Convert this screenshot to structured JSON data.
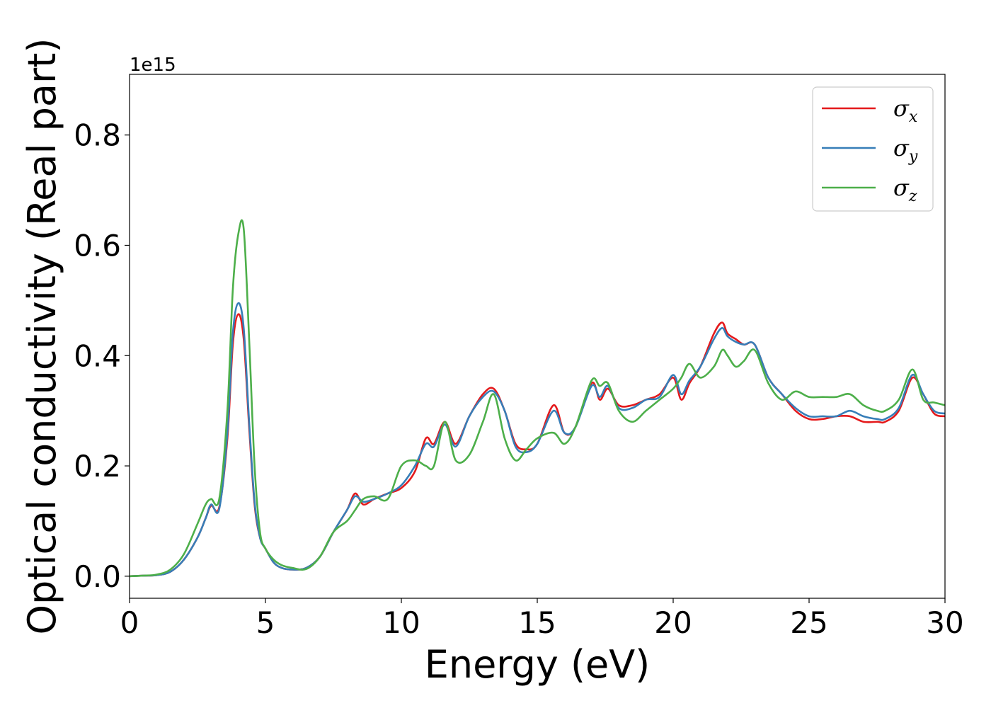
{
  "chart_data": {
    "type": "line",
    "title": "",
    "xlabel": "Energy (eV)",
    "ylabel": "Optical conductivity (Real part)",
    "y_offset_text": "1e15",
    "xlim": [
      0,
      30
    ],
    "ylim": [
      -0.04,
      0.91
    ],
    "xticks": [
      0,
      5,
      10,
      15,
      20,
      25,
      30
    ],
    "xtick_labels": [
      "0",
      "5",
      "10",
      "15",
      "20",
      "25",
      "30"
    ],
    "yticks": [
      0.0,
      0.2,
      0.4,
      0.6,
      0.8
    ],
    "ytick_labels": [
      "0.0",
      "0.2",
      "0.4",
      "0.6",
      "0.8"
    ],
    "grid": false,
    "legend_position": "top-right",
    "x": [
      0,
      0.5,
      1,
      1.5,
      2,
      2.5,
      2.8,
      3,
      3.3,
      3.6,
      3.8,
      4,
      4.2,
      4.4,
      4.6,
      4.8,
      5,
      5.3,
      5.6,
      6,
      6.5,
      7,
      7.5,
      8,
      8.3,
      8.6,
      9,
      9.5,
      10,
      10.5,
      10.9,
      11.2,
      11.6,
      12,
      12.5,
      13,
      13.4,
      13.8,
      14.2,
      14.6,
      15,
      15.6,
      16,
      16.4,
      17,
      17.3,
      17.6,
      18,
      18.5,
      19,
      19.5,
      20,
      20.3,
      20.6,
      21,
      21.5,
      21.8,
      22,
      22.3,
      22.6,
      23,
      23.5,
      24,
      24.5,
      25,
      25.5,
      26,
      26.5,
      27,
      27.5,
      27.8,
      28.3,
      28.8,
      29.2,
      29.6,
      30
    ],
    "series": [
      {
        "name": "σx",
        "color": "#e41a1c",
        "values": [
          0,
          0.001,
          0.002,
          0.008,
          0.03,
          0.07,
          0.105,
          0.128,
          0.125,
          0.25,
          0.42,
          0.475,
          0.43,
          0.27,
          0.13,
          0.07,
          0.05,
          0.025,
          0.015,
          0.012,
          0.015,
          0.035,
          0.08,
          0.12,
          0.15,
          0.13,
          0.14,
          0.15,
          0.16,
          0.19,
          0.25,
          0.24,
          0.28,
          0.24,
          0.29,
          0.33,
          0.34,
          0.3,
          0.24,
          0.23,
          0.24,
          0.31,
          0.26,
          0.27,
          0.35,
          0.32,
          0.34,
          0.31,
          0.31,
          0.32,
          0.33,
          0.36,
          0.32,
          0.35,
          0.38,
          0.44,
          0.46,
          0.44,
          0.43,
          0.42,
          0.42,
          0.36,
          0.33,
          0.3,
          0.285,
          0.285,
          0.29,
          0.29,
          0.28,
          0.28,
          0.28,
          0.3,
          0.36,
          0.33,
          0.295,
          0.29
        ]
      },
      {
        "name": "σy",
        "color": "#377eb8",
        "values": [
          0,
          0.001,
          0.002,
          0.008,
          0.03,
          0.07,
          0.105,
          0.13,
          0.122,
          0.26,
          0.44,
          0.495,
          0.45,
          0.28,
          0.135,
          0.07,
          0.05,
          0.025,
          0.015,
          0.012,
          0.015,
          0.035,
          0.08,
          0.12,
          0.145,
          0.135,
          0.14,
          0.15,
          0.165,
          0.2,
          0.24,
          0.235,
          0.275,
          0.235,
          0.29,
          0.325,
          0.335,
          0.3,
          0.235,
          0.225,
          0.24,
          0.3,
          0.26,
          0.27,
          0.345,
          0.325,
          0.345,
          0.305,
          0.305,
          0.32,
          0.325,
          0.365,
          0.33,
          0.355,
          0.38,
          0.43,
          0.45,
          0.435,
          0.425,
          0.42,
          0.42,
          0.36,
          0.33,
          0.305,
          0.29,
          0.29,
          0.29,
          0.3,
          0.29,
          0.285,
          0.285,
          0.305,
          0.365,
          0.33,
          0.3,
          0.295
        ]
      },
      {
        "name": "σz",
        "color": "#4daf4a",
        "values": [
          0,
          0.001,
          0.003,
          0.012,
          0.04,
          0.095,
          0.13,
          0.14,
          0.14,
          0.3,
          0.52,
          0.62,
          0.63,
          0.43,
          0.2,
          0.08,
          0.05,
          0.03,
          0.02,
          0.015,
          0.013,
          0.035,
          0.08,
          0.1,
          0.12,
          0.14,
          0.145,
          0.14,
          0.2,
          0.21,
          0.2,
          0.2,
          0.28,
          0.21,
          0.22,
          0.28,
          0.33,
          0.25,
          0.21,
          0.23,
          0.25,
          0.26,
          0.24,
          0.27,
          0.355,
          0.345,
          0.35,
          0.3,
          0.28,
          0.3,
          0.32,
          0.34,
          0.36,
          0.385,
          0.36,
          0.38,
          0.41,
          0.4,
          0.38,
          0.39,
          0.41,
          0.35,
          0.32,
          0.335,
          0.325,
          0.325,
          0.325,
          0.33,
          0.31,
          0.3,
          0.3,
          0.32,
          0.375,
          0.32,
          0.315,
          0.31
        ]
      }
    ]
  }
}
